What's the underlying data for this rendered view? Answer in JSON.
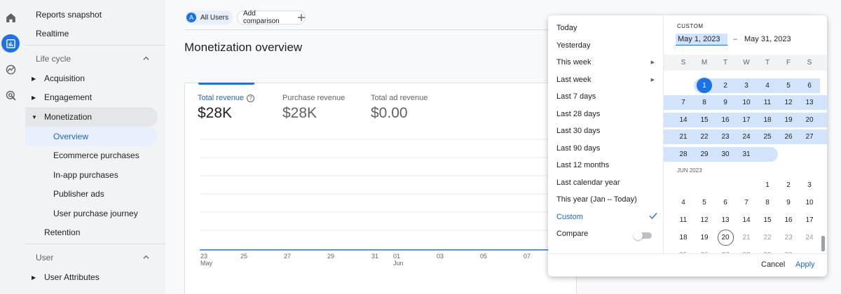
{
  "rail": {
    "icons": [
      "home-icon",
      "reports-icon",
      "explore-icon",
      "advertising-icon"
    ]
  },
  "sidebar": {
    "reports_snapshot": "Reports snapshot",
    "realtime": "Realtime",
    "lifecycle_header": "Life cycle",
    "acquisition": "Acquisition",
    "engagement": "Engagement",
    "monetization": "Monetization",
    "overview": "Overview",
    "ecommerce": "Ecommerce purchases",
    "inapp": "In-app purchases",
    "publisher_ads": "Publisher ads",
    "purchase_journey": "User purchase journey",
    "retention": "Retention",
    "user_header": "User",
    "user_attributes": "User Attributes"
  },
  "header": {
    "segment_avatar": "A",
    "segment_label": "All Users",
    "add_comparison": "Add comparison",
    "page_title": "Monetization overview"
  },
  "metrics": [
    {
      "label": "Total revenue",
      "value": "$28K"
    },
    {
      "label": "Purchase revenue",
      "value": "$28K"
    },
    {
      "label": "Total ad revenue",
      "value": "$0.00"
    }
  ],
  "chart": {
    "x_ticks": [
      "23",
      "25",
      "27",
      "29",
      "31",
      "01",
      "03",
      "05",
      "07"
    ],
    "x_months": [
      "May",
      "Jun"
    ],
    "series_color": "#1a73e8"
  },
  "date_picker": {
    "presets": [
      "Today",
      "Yesterday",
      "This week",
      "Last week",
      "Last 7 days",
      "Last 28 days",
      "Last 30 days",
      "Last 90 days",
      "Last 12 months",
      "Last calendar year",
      "This year (Jan – Today)",
      "Custom"
    ],
    "compare_label": "Compare",
    "compare_on": false,
    "custom_label": "CUSTOM",
    "start_date": "May 1, 2023",
    "date_separator": "–",
    "end_date": "May 31, 2023",
    "weekdays": [
      "S",
      "M",
      "T",
      "W",
      "T",
      "F",
      "S"
    ],
    "june_label": "JUN 2023",
    "cancel": "Cancel",
    "apply": "Apply",
    "accent": "#1a73e8",
    "range_color": "#d2e3fc"
  }
}
